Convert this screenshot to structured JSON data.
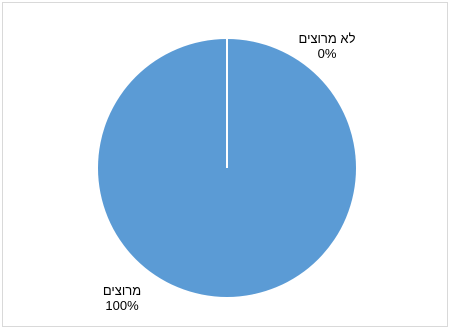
{
  "chart_data": {
    "type": "pie",
    "slices": [
      {
        "label": "לא מרוצים",
        "value_label": "0%",
        "value": 0,
        "color": "#5b9bd5"
      },
      {
        "label": "מרוצים",
        "value_label": "100%",
        "value": 100,
        "color": "#5b9bd5"
      }
    ],
    "legend": "none",
    "slice_border_color": "#ffffff"
  }
}
